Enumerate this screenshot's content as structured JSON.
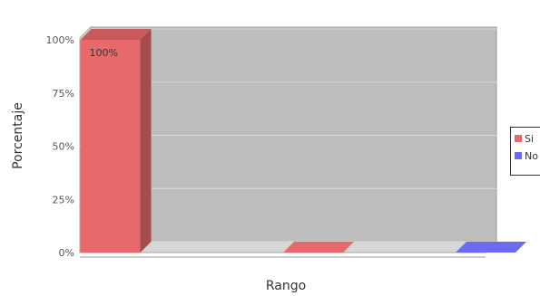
{
  "chart_data": {
    "type": "bar",
    "title": "",
    "xlabel": "Rango",
    "ylabel": "Porcentaje",
    "ylim": [
      0,
      100
    ],
    "y_ticks": [
      "0%",
      "25%",
      "50%",
      "75%",
      "100%"
    ],
    "categories": [
      "",
      ""
    ],
    "series": [
      {
        "name": "Si",
        "color": "#e8696b",
        "values": [
          100,
          0
        ],
        "data_labels": [
          "100%",
          ""
        ]
      },
      {
        "name": "No",
        "color": "#6b6bf2",
        "values": [
          0,
          0
        ],
        "data_labels": [
          "",
          ""
        ]
      }
    ],
    "legend_position": "right",
    "style": "3d",
    "grid": true
  }
}
